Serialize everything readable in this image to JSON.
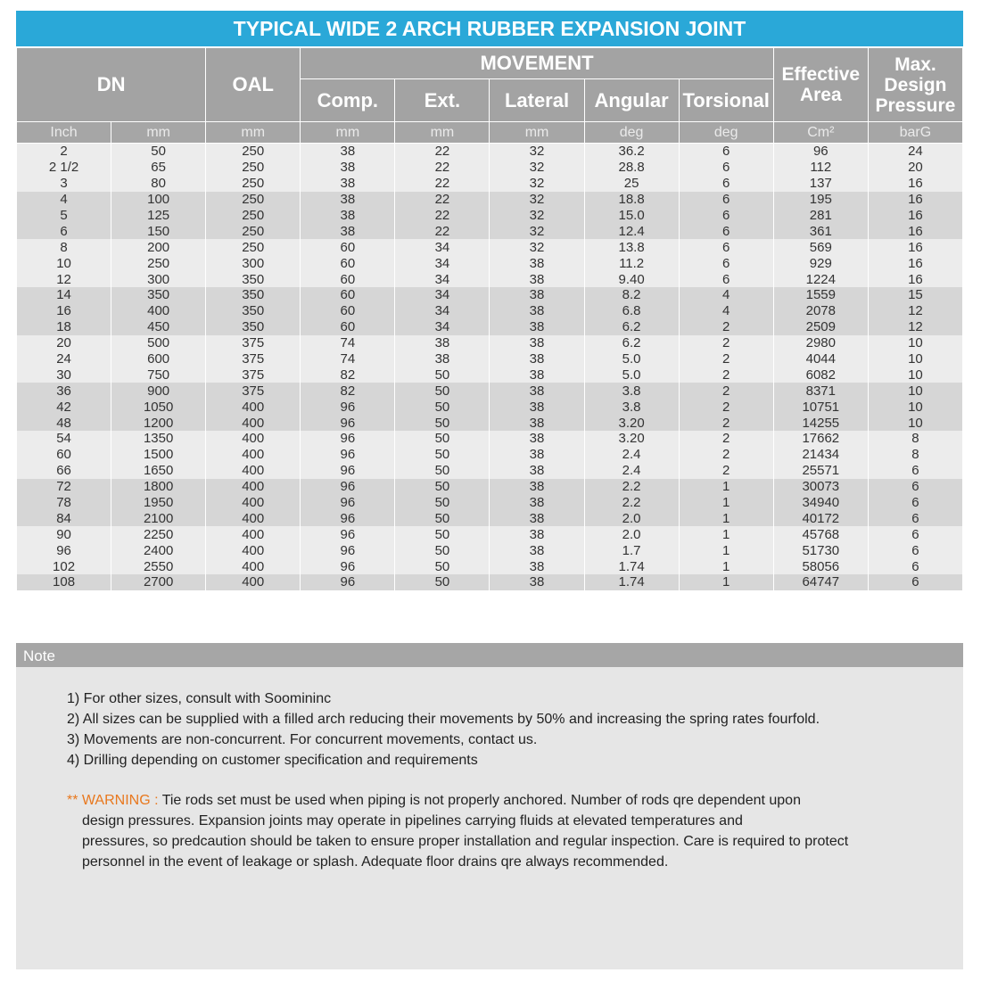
{
  "title": "TYPICAL WIDE 2 ARCH RUBBER EXPANSION JOINT",
  "header": {
    "dn": "DN",
    "oal": "OAL",
    "movement": "MOVEMENT",
    "effective_area": "Effective Area",
    "max_pressure": "Max. Design Pressure",
    "movement_columns": [
      "Comp.",
      "Ext.",
      "Lateral",
      "Angular",
      "Torsional"
    ]
  },
  "units": [
    "Inch",
    "mm",
    "mm",
    "mm",
    "mm",
    "mm",
    "deg",
    "deg",
    "Cm²",
    "barG"
  ],
  "table": {
    "rows": [
      [
        "2",
        "50",
        "250",
        "38",
        "22",
        "32",
        "36.2",
        "6",
        "96",
        "24"
      ],
      [
        "2 1/2",
        "65",
        "250",
        "38",
        "22",
        "32",
        "28.8",
        "6",
        "112",
        "20"
      ],
      [
        "3",
        "80",
        "250",
        "38",
        "22",
        "32",
        "25",
        "6",
        "137",
        "16"
      ],
      [
        "4",
        "100",
        "250",
        "38",
        "22",
        "32",
        "18.8",
        "6",
        "195",
        "16"
      ],
      [
        "5",
        "125",
        "250",
        "38",
        "22",
        "32",
        "15.0",
        "6",
        "281",
        "16"
      ],
      [
        "6",
        "150",
        "250",
        "38",
        "22",
        "32",
        "12.4",
        "6",
        "361",
        "16"
      ],
      [
        "8",
        "200",
        "250",
        "60",
        "34",
        "32",
        "13.8",
        "6",
        "569",
        "16"
      ],
      [
        "10",
        "250",
        "300",
        "60",
        "34",
        "38",
        "11.2",
        "6",
        "929",
        "16"
      ],
      [
        "12",
        "300",
        "350",
        "60",
        "34",
        "38",
        "9.40",
        "6",
        "1224",
        "16"
      ],
      [
        "14",
        "350",
        "350",
        "60",
        "34",
        "38",
        "8.2",
        "4",
        "1559",
        "15"
      ],
      [
        "16",
        "400",
        "350",
        "60",
        "34",
        "38",
        "6.8",
        "4",
        "2078",
        "12"
      ],
      [
        "18",
        "450",
        "350",
        "60",
        "34",
        "38",
        "6.2",
        "2",
        "2509",
        "12"
      ],
      [
        "20",
        "500",
        "375",
        "74",
        "38",
        "38",
        "6.2",
        "2",
        "2980",
        "10"
      ],
      [
        "24",
        "600",
        "375",
        "74",
        "38",
        "38",
        "5.0",
        "2",
        "4044",
        "10"
      ],
      [
        "30",
        "750",
        "375",
        "82",
        "50",
        "38",
        "5.0",
        "2",
        "6082",
        "10"
      ],
      [
        "36",
        "900",
        "375",
        "82",
        "50",
        "38",
        "3.8",
        "2",
        "8371",
        "10"
      ],
      [
        "42",
        "1050",
        "400",
        "96",
        "50",
        "38",
        "3.8",
        "2",
        "10751",
        "10"
      ],
      [
        "48",
        "1200",
        "400",
        "96",
        "50",
        "38",
        "3.20",
        "2",
        "14255",
        "10"
      ],
      [
        "54",
        "1350",
        "400",
        "96",
        "50",
        "38",
        "3.20",
        "2",
        "17662",
        "8"
      ],
      [
        "60",
        "1500",
        "400",
        "96",
        "50",
        "38",
        "2.4",
        "2",
        "21434",
        "8"
      ],
      [
        "66",
        "1650",
        "400",
        "96",
        "50",
        "38",
        "2.4",
        "2",
        "25571",
        "6"
      ],
      [
        "72",
        "1800",
        "400",
        "96",
        "50",
        "38",
        "2.2",
        "1",
        "30073",
        "6"
      ],
      [
        "78",
        "1950",
        "400",
        "96",
        "50",
        "38",
        "2.2",
        "1",
        "34940",
        "6"
      ],
      [
        "84",
        "2100",
        "400",
        "96",
        "50",
        "38",
        "2.0",
        "1",
        "40172",
        "6"
      ],
      [
        "90",
        "2250",
        "400",
        "96",
        "50",
        "38",
        "2.0",
        "1",
        "45768",
        "6"
      ],
      [
        "96",
        "2400",
        "400",
        "96",
        "50",
        "38",
        "1.7",
        "1",
        "51730",
        "6"
      ],
      [
        "102",
        "2550",
        "400",
        "96",
        "50",
        "38",
        "1.74",
        "1",
        "58056",
        "6"
      ],
      [
        "108",
        "2700",
        "400",
        "96",
        "50",
        "38",
        "1.74",
        "1",
        "64747",
        "6"
      ]
    ]
  },
  "note": {
    "title": "Note",
    "items": [
      "1) For other sizes, consult with Soomininc",
      "2) All sizes can be supplied with a filled arch reducing their movements by 50% and increasing the spring rates fourfold.",
      "3) Movements are non-concurrent. For concurrent movements, contact us.",
      "4) Drilling depending on customer specification and requirements"
    ],
    "warning_label": "** WARNING :",
    "warning_lines": [
      "Tie rods set must be used when piping is not properly anchored. Number of rods qre dependent upon",
      "design pressures. Expansion joints may operate in pipelines carrying fluids at elevated temperatures and",
      "pressures, so predcaution should be taken to ensure proper installation and regular inspection. Care is required to protect",
      "personnel in the event of leakage or splash. Adequate floor drains qre always recommended."
    ]
  }
}
